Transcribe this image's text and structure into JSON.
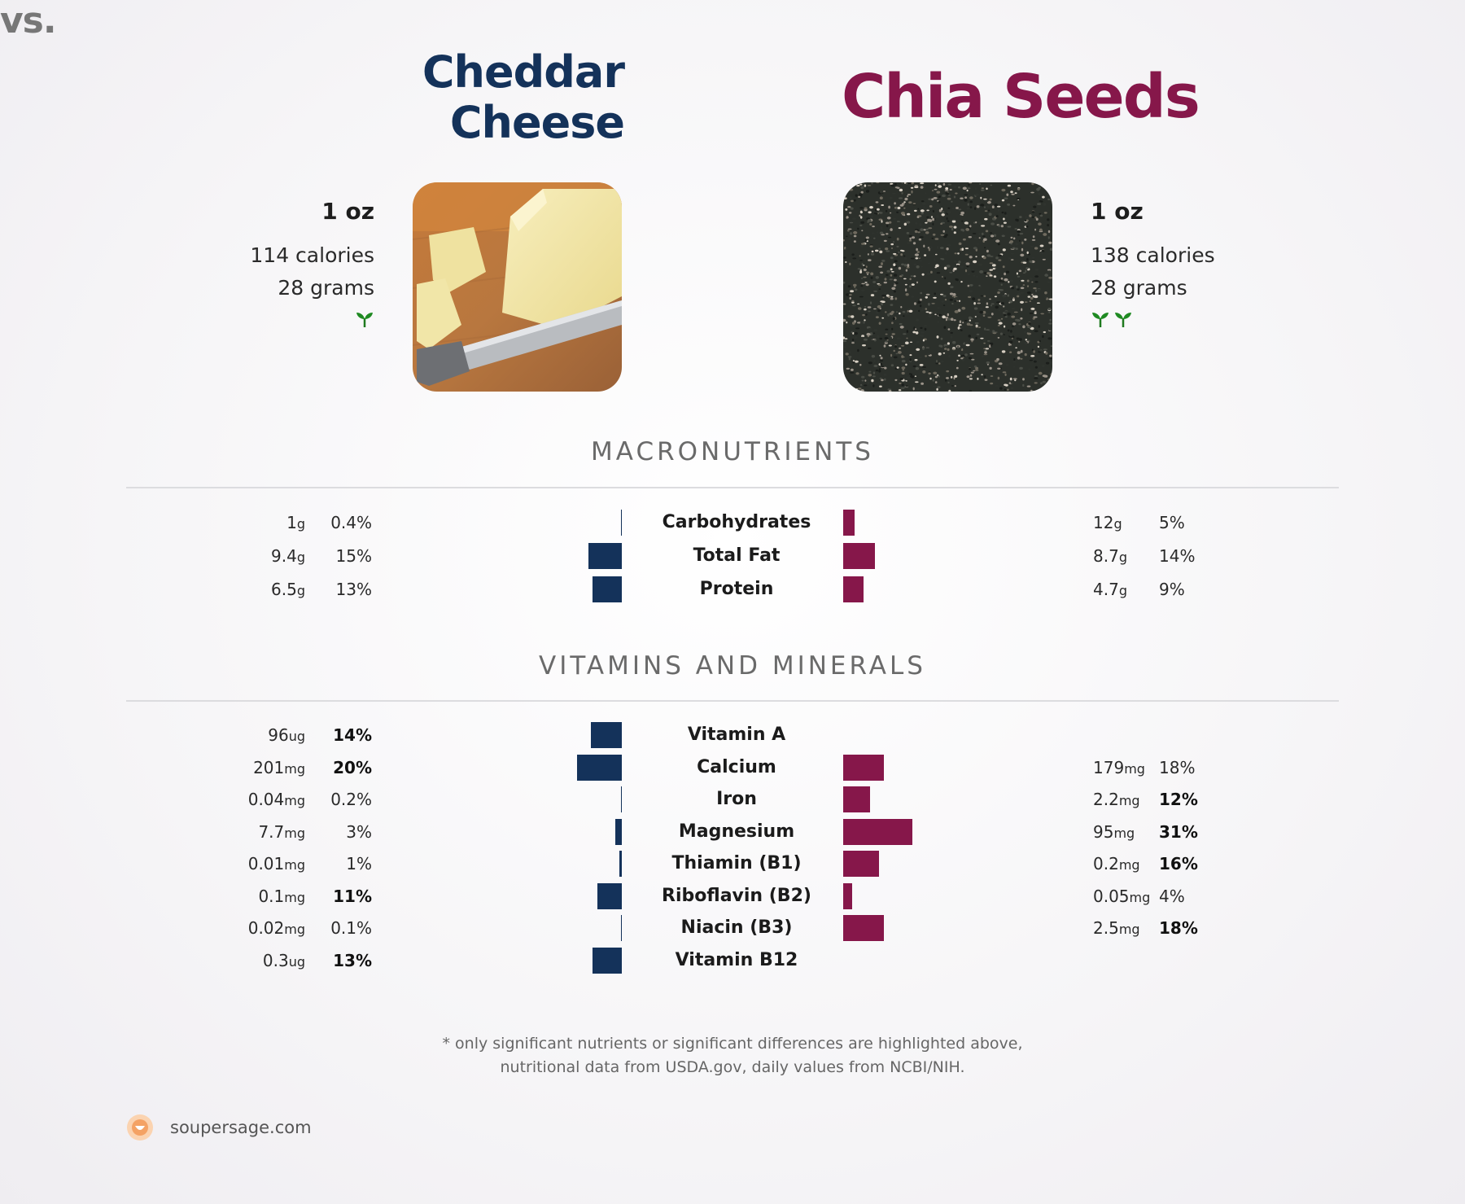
{
  "header": {
    "left_title_line1": "Cheddar",
    "left_title_line2": "Cheese",
    "vs": "vs.",
    "right_title": "Chia Seeds"
  },
  "left_food": {
    "serving": "1 oz",
    "calories": "114 calories",
    "grams": "28 grams",
    "sprout_count": 1,
    "color": "#14325a"
  },
  "right_food": {
    "serving": "1 oz",
    "calories": "138 calories",
    "grams": "28 grams",
    "sprout_count": 2,
    "color": "#86174a"
  },
  "sections": {
    "macros_title": "MACRONUTRIENTS",
    "vitamins_title": "VITAMINS AND MINERALS"
  },
  "chart_data": {
    "type": "bar",
    "orientation": "diverging-horizontal",
    "series": [
      {
        "name": "Cheddar Cheese",
        "color": "#14325a"
      },
      {
        "name": "Chia Seeds",
        "color": "#86174a"
      }
    ],
    "macronutrients": [
      {
        "name": "Carbohydrates",
        "left_amount": "1",
        "left_unit": "g",
        "left_pct": "0.4%",
        "left_value": 0.4,
        "left_bold": false,
        "right_amount": "12",
        "right_unit": "g",
        "right_pct": "5%",
        "right_value": 5,
        "right_bold": false
      },
      {
        "name": "Total Fat",
        "left_amount": "9.4",
        "left_unit": "g",
        "left_pct": "15%",
        "left_value": 15,
        "left_bold": false,
        "right_amount": "8.7",
        "right_unit": "g",
        "right_pct": "14%",
        "right_value": 14,
        "right_bold": false
      },
      {
        "name": "Protein",
        "left_amount": "6.5",
        "left_unit": "g",
        "left_pct": "13%",
        "left_value": 13,
        "left_bold": false,
        "right_amount": "4.7",
        "right_unit": "g",
        "right_pct": "9%",
        "right_value": 9,
        "right_bold": false
      }
    ],
    "vitamins_minerals": [
      {
        "name": "Vitamin A",
        "left_amount": "96",
        "left_unit": "ug",
        "left_pct": "14%",
        "left_value": 14,
        "left_bold": true,
        "right_amount": "",
        "right_unit": "",
        "right_pct": "",
        "right_value": 0,
        "right_bold": false
      },
      {
        "name": "Calcium",
        "left_amount": "201",
        "left_unit": "mg",
        "left_pct": "20%",
        "left_value": 20,
        "left_bold": true,
        "right_amount": "179",
        "right_unit": "mg",
        "right_pct": "18%",
        "right_value": 18,
        "right_bold": false
      },
      {
        "name": "Iron",
        "left_amount": "0.04",
        "left_unit": "mg",
        "left_pct": "0.2%",
        "left_value": 0.2,
        "left_bold": false,
        "right_amount": "2.2",
        "right_unit": "mg",
        "right_pct": "12%",
        "right_value": 12,
        "right_bold": true
      },
      {
        "name": "Magnesium",
        "left_amount": "7.7",
        "left_unit": "mg",
        "left_pct": "3%",
        "left_value": 3,
        "left_bold": false,
        "right_amount": "95",
        "right_unit": "mg",
        "right_pct": "31%",
        "right_value": 31,
        "right_bold": true
      },
      {
        "name": "Thiamin (B1)",
        "left_amount": "0.01",
        "left_unit": "mg",
        "left_pct": "1%",
        "left_value": 1,
        "left_bold": false,
        "right_amount": "0.2",
        "right_unit": "mg",
        "right_pct": "16%",
        "right_value": 16,
        "right_bold": true
      },
      {
        "name": "Riboflavin (B2)",
        "left_amount": "0.1",
        "left_unit": "mg",
        "left_pct": "11%",
        "left_value": 11,
        "left_bold": true,
        "right_amount": "0.05",
        "right_unit": "mg",
        "right_pct": "4%",
        "right_value": 4,
        "right_bold": false
      },
      {
        "name": "Niacin (B3)",
        "left_amount": "0.02",
        "left_unit": "mg",
        "left_pct": "0.1%",
        "left_value": 0.1,
        "left_bold": false,
        "right_amount": "2.5",
        "right_unit": "mg",
        "right_pct": "18%",
        "right_value": 18,
        "right_bold": true
      },
      {
        "name": "Vitamin B12",
        "left_amount": "0.3",
        "left_unit": "ug",
        "left_pct": "13%",
        "left_value": 13,
        "left_bold": true,
        "right_amount": "",
        "right_unit": "",
        "right_pct": "",
        "right_value": 0,
        "right_bold": false
      }
    ]
  },
  "footer": {
    "note_line1": "* only significant nutrients or significant differences are highlighted above,",
    "note_line2": "nutritional data from USDA.gov, daily values from NCBI/NIH.",
    "brand": "soupersage.com"
  }
}
